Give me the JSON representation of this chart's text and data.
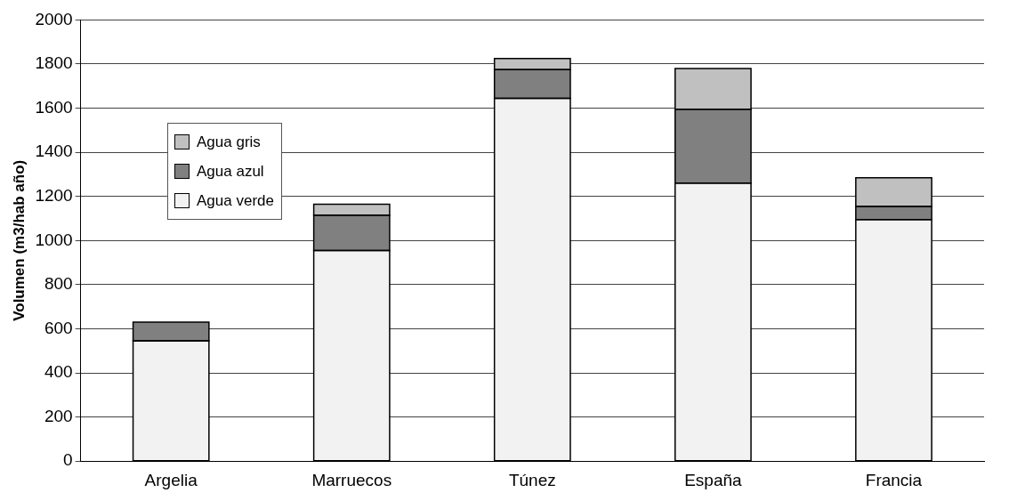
{
  "chart_data": {
    "type": "bar",
    "ylabel": "Volumen (m3/hab año)",
    "categories": [
      "Argelia",
      "Marruecos",
      "Túnez",
      "España",
      "Francia"
    ],
    "series": [
      {
        "name": "Agua verde",
        "color": "#f2f2f2",
        "values": [
          545,
          955,
          1645,
          1260,
          1095
        ]
      },
      {
        "name": "Agua azul",
        "color": "#808080",
        "values": [
          85,
          160,
          130,
          335,
          60
        ]
      },
      {
        "name": "Agua gris",
        "color": "#c0c0c0",
        "values": [
          null,
          50,
          50,
          185,
          130
        ]
      }
    ],
    "stacked": true,
    "ylim": [
      0,
      2000
    ],
    "yticks": [
      0,
      200,
      400,
      600,
      800,
      1000,
      1200,
      1400,
      1600,
      1800,
      2000
    ],
    "grid": "y",
    "legend": "top left"
  }
}
